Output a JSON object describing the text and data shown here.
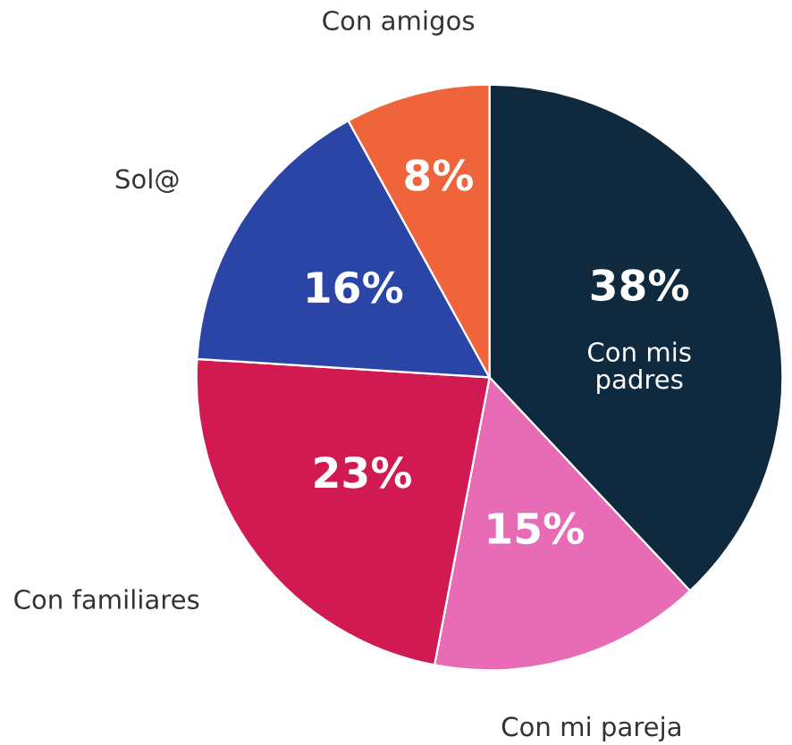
{
  "chart_data": {
    "type": "pie",
    "categories": [
      "Con mis padres",
      "Con mi pareja",
      "Con familiares",
      "Sol@",
      "Con amigos"
    ],
    "values": [
      38,
      15,
      23,
      16,
      8
    ],
    "value_labels": [
      "38%",
      "15%",
      "23%",
      "16%",
      "8%"
    ],
    "colors": [
      "#0f2a3f",
      "#e86bb5",
      "#d21a52",
      "#2b45a6",
      "#f0643c"
    ]
  }
}
